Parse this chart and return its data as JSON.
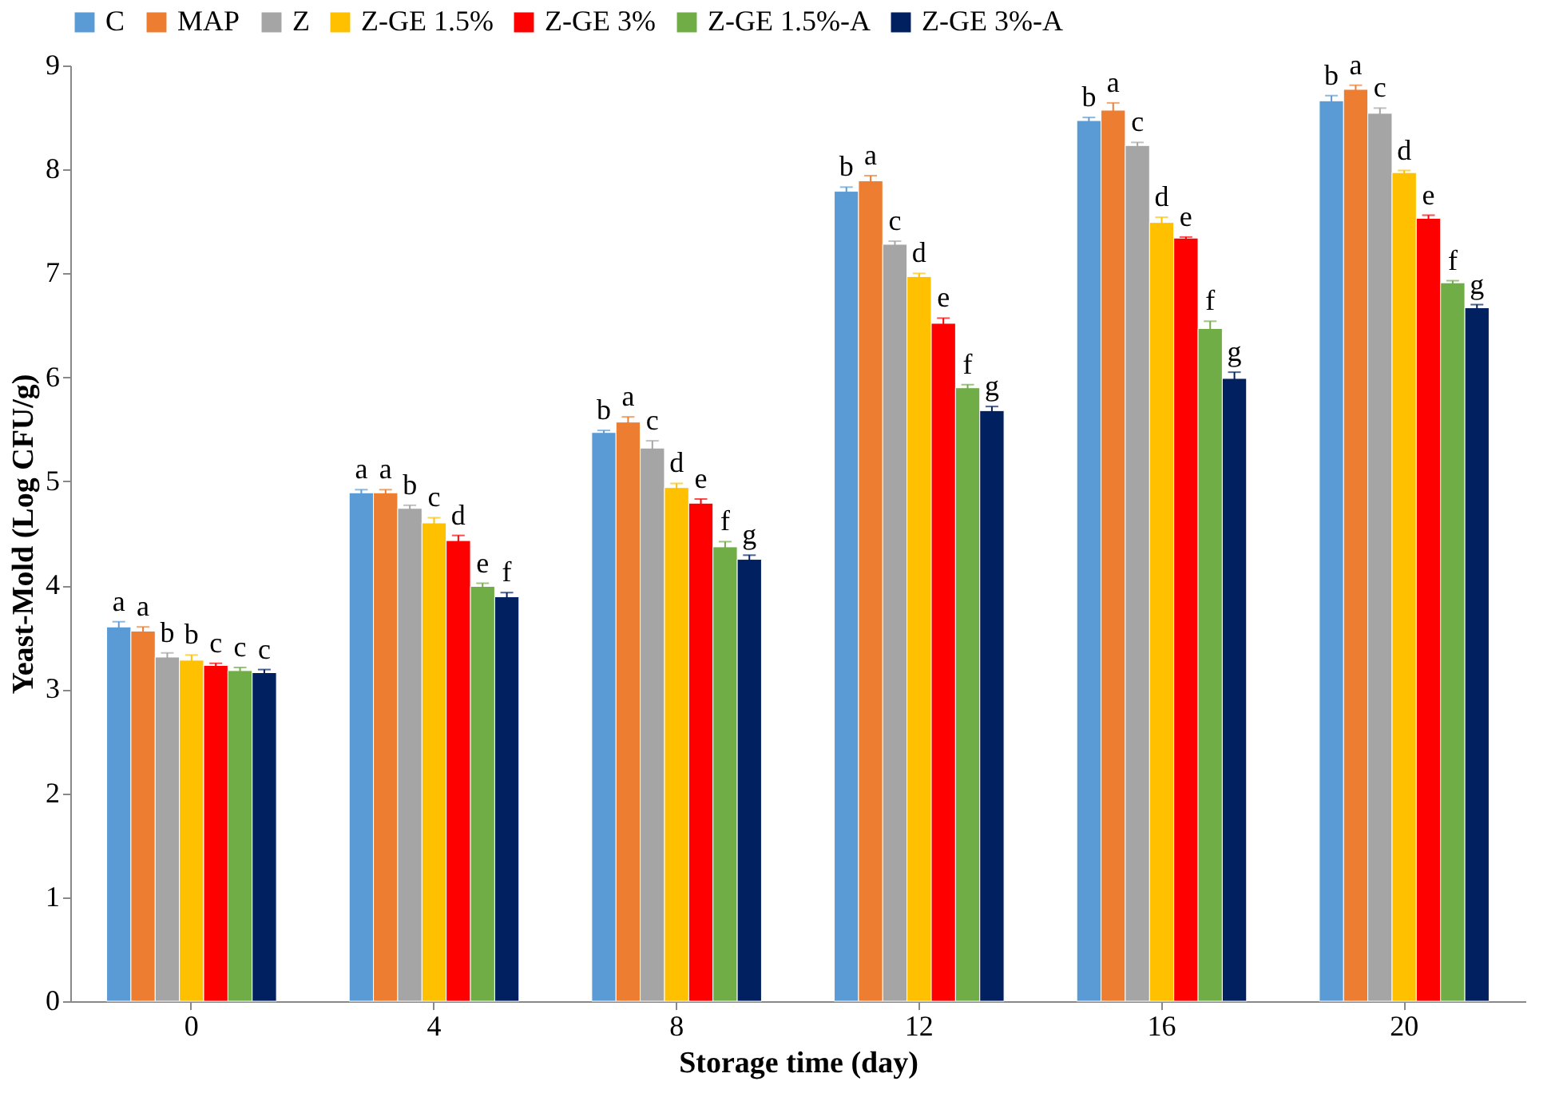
{
  "chart_data": {
    "type": "bar",
    "xlabel": "Storage time (day)",
    "ylabel": "Yeast-Mold (Log CFU/g)",
    "categories": [
      "0",
      "4",
      "8",
      "12",
      "16",
      "20"
    ],
    "series": [
      {
        "name": "C",
        "color": "#5b9bd5",
        "values": [
          3.6,
          4.89,
          5.47,
          7.79,
          8.47,
          8.66
        ],
        "errors": [
          0.05,
          0.03,
          0.02,
          0.04,
          0.03,
          0.05
        ],
        "value_labels": [
          "a",
          "a",
          "b",
          "b",
          "b",
          "b"
        ]
      },
      {
        "name": "MAP",
        "color": "#ed7d31",
        "values": [
          3.56,
          4.89,
          5.57,
          7.89,
          8.57,
          8.77
        ],
        "errors": [
          0.04,
          0.03,
          0.05,
          0.05,
          0.07,
          0.04
        ],
        "value_labels": [
          "a",
          "a",
          "a",
          "a",
          "a",
          "a"
        ]
      },
      {
        "name": "Z",
        "color": "#a5a5a5",
        "values": [
          3.31,
          4.74,
          5.32,
          7.28,
          8.23,
          8.54
        ],
        "errors": [
          0.04,
          0.03,
          0.07,
          0.03,
          0.03,
          0.05
        ],
        "value_labels": [
          "b",
          "b",
          "c",
          "c",
          "c",
          "c"
        ]
      },
      {
        "name": "Z-GE 1.5%",
        "color": "#ffc000",
        "values": [
          3.28,
          4.6,
          4.94,
          6.97,
          7.49,
          7.97
        ],
        "errors": [
          0.05,
          0.05,
          0.04,
          0.03,
          0.05,
          0.02
        ],
        "value_labels": [
          "b",
          "c",
          "d",
          "d",
          "d",
          "d"
        ]
      },
      {
        "name": "Z-GE 3%",
        "color": "#ff0000",
        "values": [
          3.23,
          4.43,
          4.79,
          6.52,
          7.34,
          7.53
        ],
        "errors": [
          0.02,
          0.05,
          0.04,
          0.05,
          0.01,
          0.03
        ],
        "value_labels": [
          "c",
          "d",
          "e",
          "e",
          "e",
          "e"
        ]
      },
      {
        "name": "Z-GE 1.5%-A",
        "color": "#70ad47",
        "values": [
          3.18,
          3.99,
          4.37,
          5.9,
          6.47,
          6.91
        ],
        "errors": [
          0.03,
          0.03,
          0.05,
          0.03,
          0.07,
          0.02
        ],
        "value_labels": [
          "c",
          "e",
          "f",
          "f",
          "f",
          "f"
        ]
      },
      {
        "name": "Z-GE 3%-A",
        "color": "#002060",
        "values": [
          3.16,
          3.89,
          4.25,
          5.68,
          5.99,
          6.67
        ],
        "errors": [
          0.03,
          0.04,
          0.04,
          0.04,
          0.06,
          0.03
        ],
        "value_labels": [
          "c",
          "f",
          "g",
          "g",
          "g",
          "g"
        ]
      }
    ],
    "ylim": [
      0,
      9
    ],
    "yticks": [
      0,
      1,
      2,
      3,
      4,
      5,
      6,
      7,
      8,
      9
    ],
    "grid": false,
    "legend": "top"
  }
}
